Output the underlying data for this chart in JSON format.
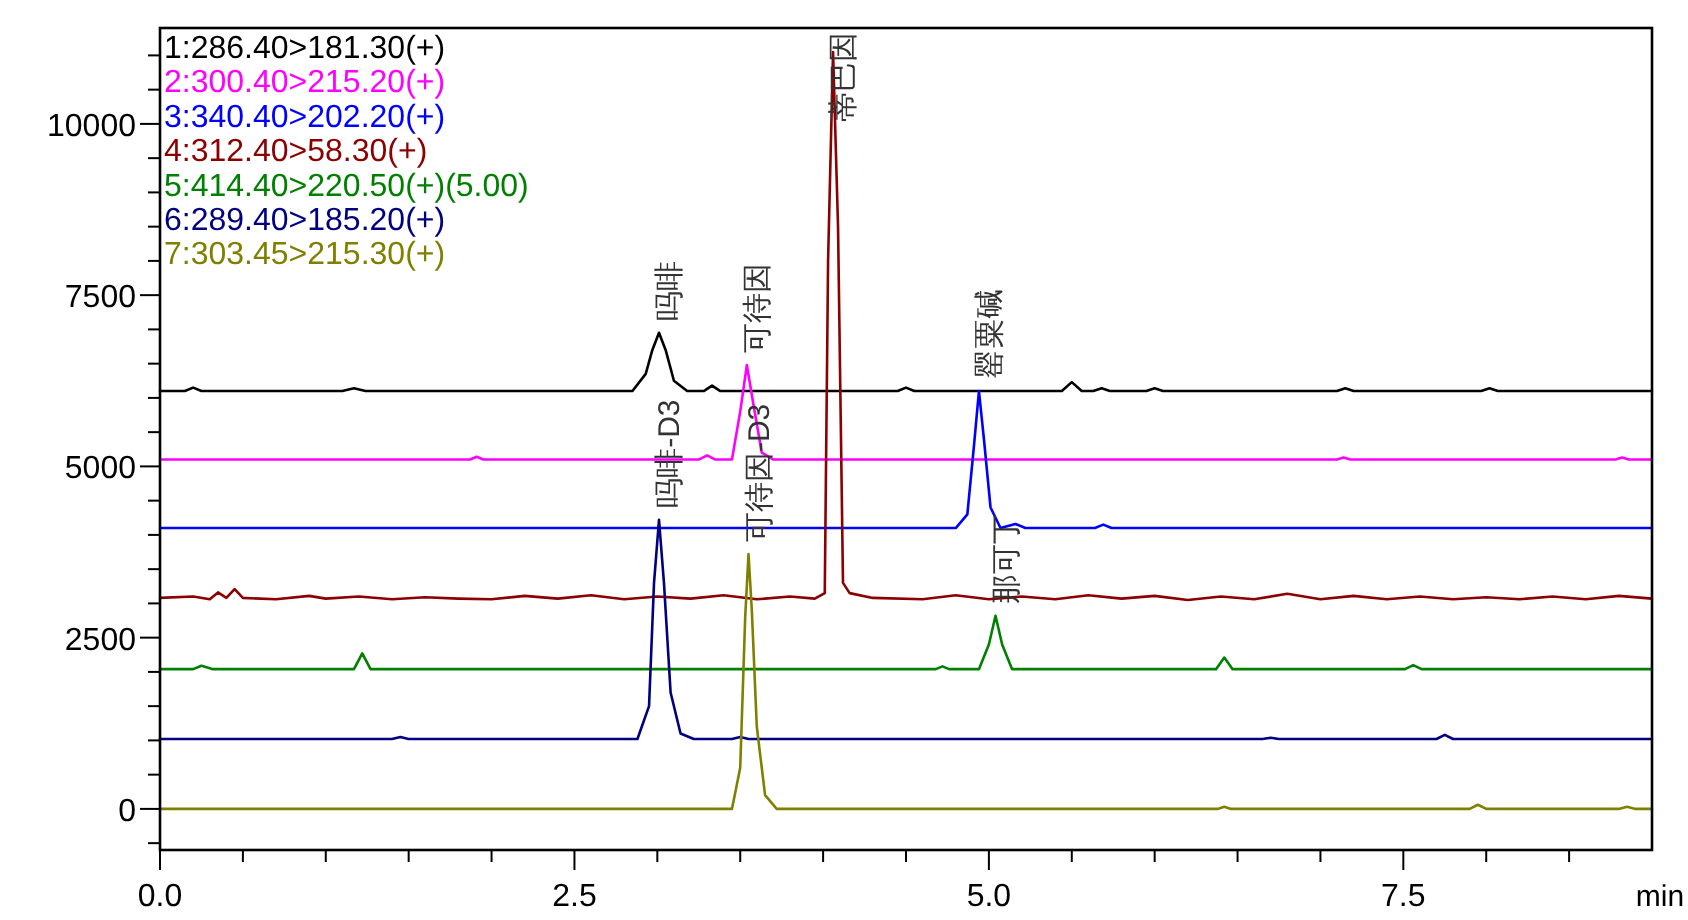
{
  "chart_data": {
    "type": "line",
    "xlabel": "min",
    "legend": "top left",
    "grid": false,
    "line_style": "solid",
    "xlim": [
      0,
      9.0
    ],
    "ylim": [
      -600,
      11400
    ],
    "xticks": [
      {
        "value": 0,
        "label": "0.0"
      },
      {
        "value": 0.5,
        "label": null
      },
      {
        "value": 1.0,
        "label": null
      },
      {
        "value": 1.5,
        "label": null
      },
      {
        "value": 2.0,
        "label": null
      },
      {
        "value": 2.5,
        "label": "2.5"
      },
      {
        "value": 3.0,
        "label": null
      },
      {
        "value": 3.5,
        "label": null
      },
      {
        "value": 4.0,
        "label": null
      },
      {
        "value": 4.5,
        "label": null
      },
      {
        "value": 5.0,
        "label": "5.0"
      },
      {
        "value": 5.5,
        "label": null
      },
      {
        "value": 6.0,
        "label": null
      },
      {
        "value": 6.5,
        "label": null
      },
      {
        "value": 7.0,
        "label": null
      },
      {
        "value": 7.5,
        "label": "7.5"
      },
      {
        "value": 8.0,
        "label": null
      },
      {
        "value": 8.5,
        "label": null
      }
    ],
    "yticks": [
      {
        "value": -500,
        "label": null
      },
      0,
      {
        "value": 500,
        "label": null
      },
      {
        "value": 1000,
        "label": null
      },
      {
        "value": 1500,
        "label": null
      },
      {
        "value": 2000,
        "label": null
      },
      2500,
      {
        "value": 3000,
        "label": null
      },
      {
        "value": 3500,
        "label": null
      },
      {
        "value": 4000,
        "label": null
      },
      {
        "value": 4500,
        "label": null
      },
      5000,
      {
        "value": 5500,
        "label": null
      },
      {
        "value": 6000,
        "label": null
      },
      {
        "value": 6500,
        "label": null
      },
      {
        "value": 7000,
        "label": null
      },
      7500,
      {
        "value": 8000,
        "label": null
      },
      {
        "value": 8500,
        "label": null
      },
      {
        "value": 9000,
        "label": null
      },
      {
        "value": 9500,
        "label": null
      },
      10000,
      {
        "value": 10500,
        "label": null
      },
      {
        "value": 11000,
        "label": null
      }
    ],
    "series": [
      {
        "name": "1:286.40>181.30(+)",
        "color": "#000000",
        "x": [
          0,
          0.15,
          0.2,
          0.25,
          1.1,
          1.17,
          1.24,
          2.85,
          2.93,
          2.97,
          3.01,
          3.05,
          3.1,
          3.18,
          3.28,
          3.33,
          3.38,
          3.45,
          4.45,
          4.5,
          4.55,
          5.44,
          5.5,
          5.56,
          5.63,
          5.68,
          5.73,
          5.95,
          6.0,
          6.05,
          7.1,
          7.15,
          7.2,
          7.97,
          8.02,
          8.07,
          9.0
        ],
        "values": [
          6100,
          6100,
          6150,
          6100,
          6100,
          6140,
          6100,
          6100,
          6350,
          6700,
          6950,
          6700,
          6250,
          6100,
          6100,
          6180,
          6100,
          6100,
          6100,
          6150,
          6100,
          6100,
          6230,
          6100,
          6100,
          6140,
          6100,
          6100,
          6140,
          6100,
          6100,
          6140,
          6100,
          6100,
          6140,
          6100,
          6100
        ]
      },
      {
        "name": "2:300.40>215.20(+)",
        "color": "#ff00ff",
        "x": [
          0,
          1.87,
          1.91,
          1.95,
          3.25,
          3.3,
          3.35,
          3.45,
          3.5,
          3.54,
          3.58,
          3.63,
          3.7,
          7.1,
          7.14,
          7.18,
          8.78,
          8.82,
          8.86,
          9.0
        ],
        "values": [
          5100,
          5100,
          5140,
          5100,
          5100,
          5160,
          5100,
          5100,
          5800,
          6480,
          5900,
          5200,
          5100,
          5100,
          5130,
          5100,
          5100,
          5130,
          5100,
          5100
        ]
      },
      {
        "name": "3:340.40>202.20(+)",
        "color": "#0000ff",
        "x": [
          0,
          4.8,
          4.87,
          4.91,
          4.94,
          4.97,
          5.01,
          5.07,
          5.16,
          5.22,
          5.64,
          5.69,
          5.74,
          9.0
        ],
        "values": [
          4100,
          4100,
          4300,
          5300,
          6100,
          5400,
          4400,
          4100,
          4160,
          4100,
          4100,
          4150,
          4100,
          4100
        ]
      },
      {
        "name": "4:312.40>58.30(+)",
        "color": "#8b0000",
        "x": [
          0,
          0.2,
          0.3,
          0.35,
          0.4,
          0.45,
          0.5,
          0.7,
          0.9,
          1.0,
          1.2,
          1.4,
          1.6,
          1.8,
          2.0,
          2.2,
          2.4,
          2.6,
          2.8,
          3.0,
          3.2,
          3.4,
          3.6,
          3.8,
          3.95,
          4.01,
          4.03,
          4.06,
          4.09,
          4.12,
          4.16,
          4.3,
          4.6,
          4.8,
          5.0,
          5.2,
          5.4,
          5.6,
          5.8,
          6.0,
          6.2,
          6.4,
          6.6,
          6.8,
          7.0,
          7.2,
          7.4,
          7.6,
          7.8,
          8.0,
          8.2,
          8.4,
          8.6,
          8.8,
          9.0
        ],
        "values": [
          3080,
          3100,
          3060,
          3160,
          3080,
          3210,
          3080,
          3060,
          3110,
          3070,
          3100,
          3060,
          3090,
          3070,
          3060,
          3110,
          3070,
          3120,
          3060,
          3100,
          3070,
          3120,
          3060,
          3100,
          3070,
          3150,
          8000,
          11050,
          8500,
          3300,
          3150,
          3080,
          3060,
          3120,
          3060,
          3100,
          3060,
          3120,
          3070,
          3110,
          3050,
          3100,
          3060,
          3140,
          3060,
          3110,
          3060,
          3100,
          3060,
          3090,
          3060,
          3100,
          3060,
          3110,
          3070
        ]
      },
      {
        "name": "5:414.40>220.50(+)(5.00)",
        "color": "#008000",
        "x": [
          0,
          0.2,
          0.25,
          0.32,
          1.17,
          1.22,
          1.27,
          4.68,
          4.72,
          4.76,
          4.94,
          5.0,
          5.04,
          5.08,
          5.14,
          6.37,
          6.42,
          6.47,
          7.51,
          7.56,
          7.61,
          9.0
        ],
        "values": [
          2040,
          2040,
          2090,
          2040,
          2040,
          2270,
          2040,
          2040,
          2080,
          2040,
          2040,
          2400,
          2820,
          2400,
          2040,
          2040,
          2210,
          2040,
          2040,
          2100,
          2040,
          2040
        ]
      },
      {
        "name": "6:289.40>185.20(+)",
        "color": "#000080",
        "x": [
          0,
          1.4,
          1.45,
          1.5,
          2.88,
          2.95,
          2.98,
          3.01,
          3.04,
          3.08,
          3.14,
          3.22,
          3.45,
          3.5,
          3.55,
          6.65,
          6.7,
          6.75,
          7.7,
          7.75,
          7.8,
          9.0
        ],
        "values": [
          1020,
          1020,
          1050,
          1020,
          1020,
          1500,
          3300,
          4220,
          3300,
          1700,
          1100,
          1020,
          1020,
          1050,
          1020,
          1020,
          1040,
          1020,
          1020,
          1080,
          1020,
          1020
        ]
      },
      {
        "name": "7:303.45>215.30(+)",
        "color": "#808000",
        "x": [
          0,
          3.45,
          3.5,
          3.53,
          3.55,
          3.57,
          3.6,
          3.65,
          3.72,
          6.38,
          6.42,
          6.46,
          7.9,
          7.95,
          8.0,
          8.8,
          8.85,
          8.9,
          9.0
        ],
        "values": [
          0,
          0,
          600,
          2800,
          3720,
          2900,
          1200,
          200,
          0,
          0,
          30,
          0,
          0,
          60,
          0,
          0,
          30,
          0,
          0
        ]
      }
    ],
    "annotations": [
      {
        "text": "吗啡",
        "x": 3.01,
        "y": 6950
      },
      {
        "text": "可待因",
        "x": 3.54,
        "y": 6480
      },
      {
        "text": "罂粟碱",
        "x": 4.94,
        "y": 6100
      },
      {
        "text": "蒂巴因",
        "x": 4.06,
        "y": 11050
      },
      {
        "text": "那可丁",
        "x": 5.04,
        "y": 2820
      },
      {
        "text": "吗啡-D3",
        "x": 3.01,
        "y": 4220
      },
      {
        "text": "可待因-D3",
        "x": 3.55,
        "y": 3720
      }
    ]
  }
}
